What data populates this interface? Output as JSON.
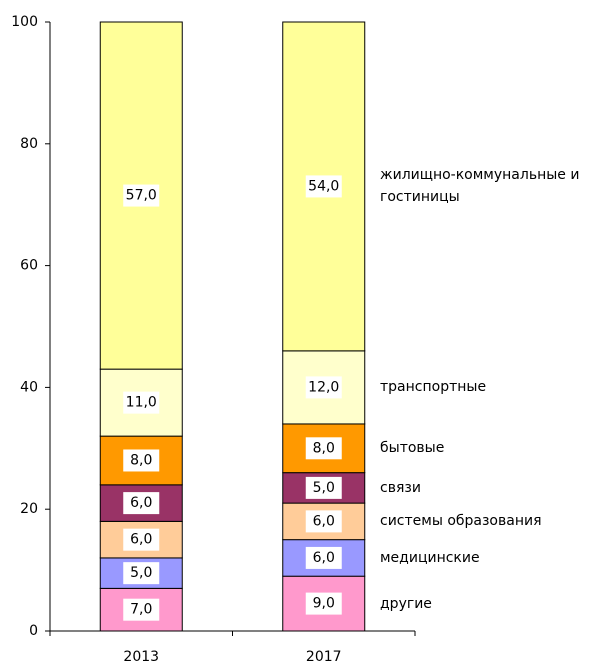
{
  "chart_data": {
    "type": "stacked_bar",
    "categories": [
      "2013",
      "2017"
    ],
    "ylim": [
      0,
      100
    ],
    "yticks": [
      0,
      20,
      40,
      60,
      80,
      100
    ],
    "series": [
      {
        "name": "другие",
        "color": "#ff99cc",
        "values": [
          7,
          9
        ],
        "value_labels": [
          "7,0",
          "9,0"
        ]
      },
      {
        "name": "медицинские",
        "color": "#9999ff",
        "values": [
          5,
          6
        ],
        "value_labels": [
          "5,0",
          "6,0"
        ]
      },
      {
        "name": "системы образования",
        "color": "#ffcc99",
        "values": [
          6,
          6
        ],
        "value_labels": [
          "6,0",
          "6,0"
        ]
      },
      {
        "name": "связи",
        "color": "#993366",
        "values": [
          6,
          5
        ],
        "value_labels": [
          "6,0",
          "5,0"
        ]
      },
      {
        "name": "бытовые",
        "color": "#ff9900",
        "values": [
          8,
          8
        ],
        "value_labels": [
          "8,0",
          "8,0"
        ]
      },
      {
        "name": "транспортные",
        "color": "#ffffcc",
        "values": [
          11,
          12
        ],
        "value_labels": [
          "11,0",
          "12,0"
        ]
      },
      {
        "name": "жилищно-коммунальные и гостиницы",
        "color": "#ffff99",
        "values": [
          57,
          54
        ],
        "value_labels": [
          "57,0",
          "54,0"
        ]
      }
    ]
  }
}
